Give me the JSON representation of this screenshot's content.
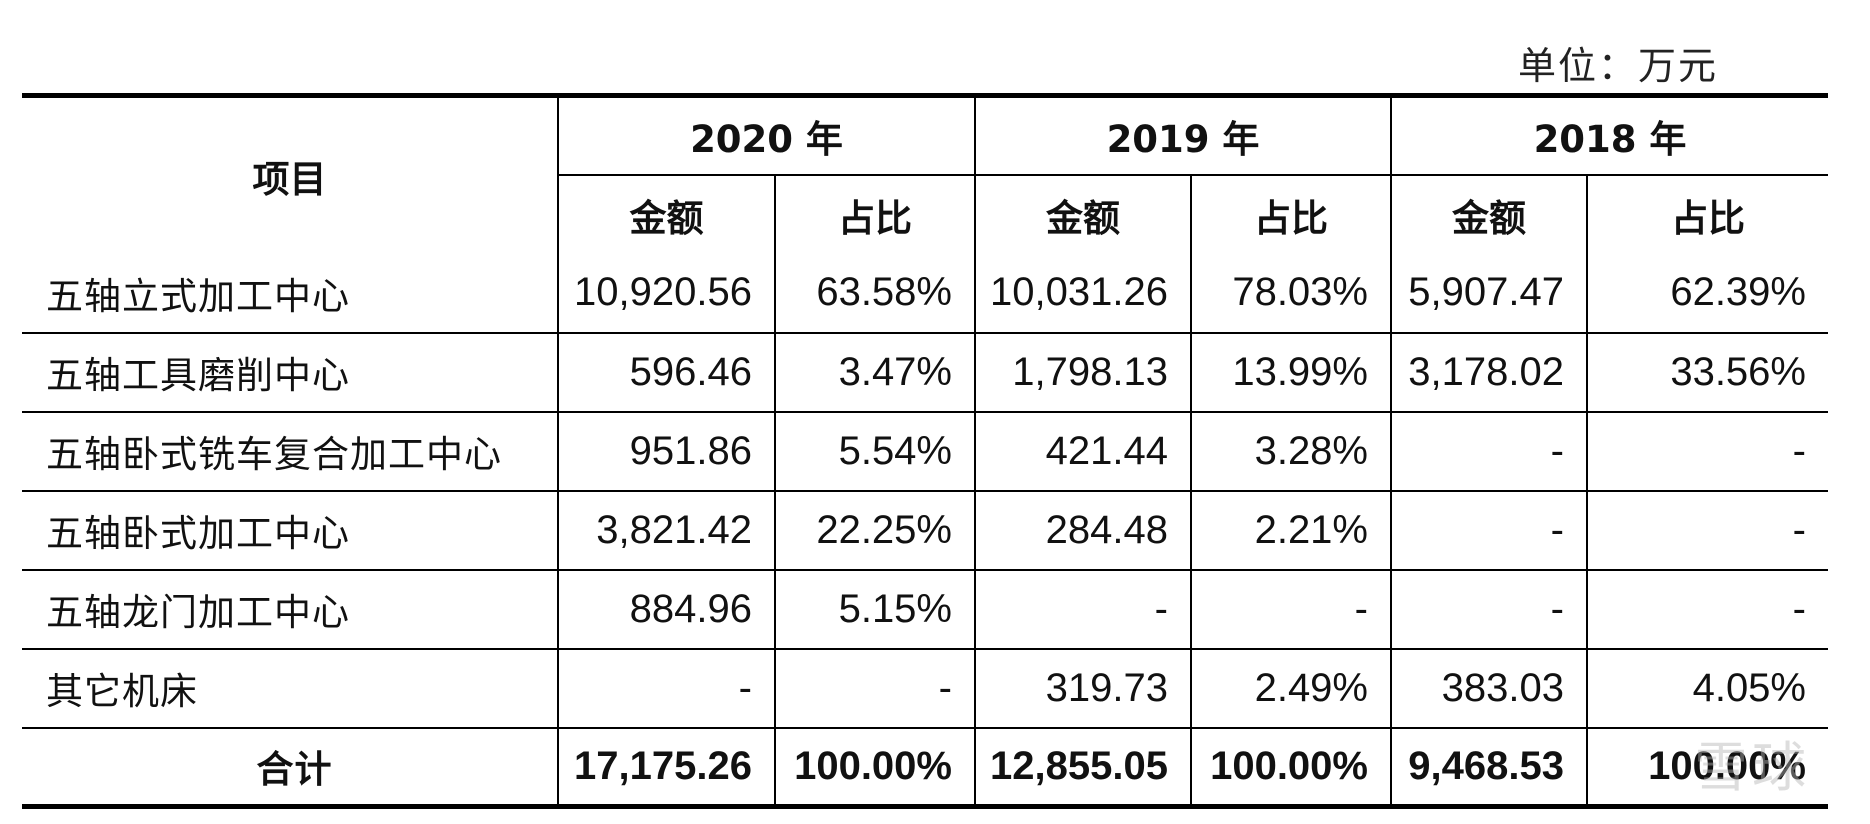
{
  "unit_label": "单位：万元",
  "headers": {
    "item": "项目",
    "years": [
      "2020 年",
      "2019 年",
      "2018 年"
    ],
    "amount": "金额",
    "ratio": "占比"
  },
  "rows": [
    {
      "name": "五轴立式加工中心",
      "cells": [
        "10,920.56",
        "63.58%",
        "10,031.26",
        "78.03%",
        "5,907.47",
        "62.39%"
      ]
    },
    {
      "name": "五轴工具磨削中心",
      "cells": [
        "596.46",
        "3.47%",
        "1,798.13",
        "13.99%",
        "3,178.02",
        "33.56%"
      ]
    },
    {
      "name": "五轴卧式铣车复合加工中心",
      "cells": [
        "951.86",
        "5.54%",
        "421.44",
        "3.28%",
        "-",
        "-"
      ]
    },
    {
      "name": "五轴卧式加工中心",
      "cells": [
        "3,821.42",
        "22.25%",
        "284.48",
        "2.21%",
        "-",
        "-"
      ]
    },
    {
      "name": "五轴龙门加工中心",
      "cells": [
        "884.96",
        "5.15%",
        "-",
        "-",
        "-",
        "-"
      ]
    },
    {
      "name": "其它机床",
      "cells": [
        "-",
        "-",
        "319.73",
        "2.49%",
        "383.03",
        "4.05%"
      ]
    }
  ],
  "total": {
    "name": "合计",
    "cells": [
      "17,175.26",
      "100.00%",
      "12,855.05",
      "100.00%",
      "9,468.53",
      "100.00%"
    ]
  },
  "watermark": "雪球"
}
